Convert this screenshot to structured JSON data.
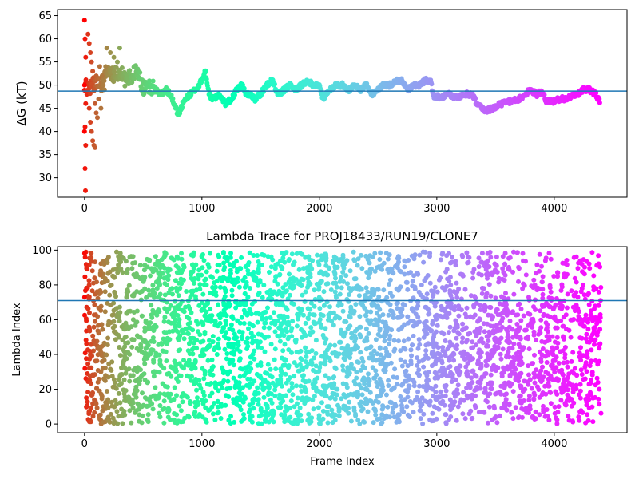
{
  "chart_data": [
    {
      "type": "scatter",
      "ylabel": "ΔG (kT)",
      "xlim": [
        -230,
        4620
      ],
      "ylim": [
        25.8,
        66.3
      ],
      "xticks": [
        0,
        1000,
        2000,
        3000,
        4000
      ],
      "yticks": [
        30,
        35,
        40,
        45,
        50,
        55,
        60,
        65
      ],
      "hline": 48.7,
      "hline_color": "#1f77b4",
      "colormap": "rainbow",
      "n_frames": 4400,
      "marker_size": 3,
      "trace_points": [
        [
          0,
          50
        ],
        [
          40,
          49
        ],
        [
          100,
          51
        ],
        [
          150,
          50
        ],
        [
          200,
          53
        ],
        [
          250,
          52
        ],
        [
          300,
          53
        ],
        [
          350,
          51
        ],
        [
          400,
          52
        ],
        [
          450,
          53
        ],
        [
          500,
          49
        ],
        [
          550,
          50
        ],
        [
          600,
          49
        ],
        [
          650,
          48
        ],
        [
          700,
          49
        ],
        [
          750,
          47
        ],
        [
          800,
          43.5
        ],
        [
          850,
          47
        ],
        [
          900,
          48
        ],
        [
          950,
          49
        ],
        [
          1000,
          51
        ],
        [
          1030,
          53
        ],
        [
          1060,
          48
        ],
        [
          1100,
          47
        ],
        [
          1150,
          48
        ],
        [
          1200,
          46
        ],
        [
          1250,
          47
        ],
        [
          1300,
          49
        ],
        [
          1340,
          50
        ],
        [
          1380,
          48
        ],
        [
          1420,
          48
        ],
        [
          1450,
          47
        ],
        [
          1500,
          48
        ],
        [
          1550,
          50
        ],
        [
          1600,
          51
        ],
        [
          1650,
          48
        ],
        [
          1700,
          49
        ],
        [
          1750,
          50
        ],
        [
          1800,
          49
        ],
        [
          1850,
          50
        ],
        [
          1900,
          51
        ],
        [
          1950,
          50
        ],
        [
          2000,
          50
        ],
        [
          2030,
          47
        ],
        [
          2080,
          49
        ],
        [
          2150,
          50
        ],
        [
          2200,
          50
        ],
        [
          2250,
          49
        ],
        [
          2300,
          50
        ],
        [
          2350,
          49
        ],
        [
          2400,
          50
        ],
        [
          2450,
          48
        ],
        [
          2500,
          49
        ],
        [
          2550,
          50
        ],
        [
          2600,
          50
        ],
        [
          2650,
          51
        ],
        [
          2700,
          51
        ],
        [
          2750,
          49
        ],
        [
          2800,
          50
        ],
        [
          2850,
          50
        ],
        [
          2900,
          51
        ],
        [
          2950,
          51
        ],
        [
          2970,
          47.5
        ],
        [
          3050,
          47.5
        ],
        [
          3100,
          48
        ],
        [
          3150,
          47.5
        ],
        [
          3200,
          47.5
        ],
        [
          3250,
          48
        ],
        [
          3300,
          48
        ],
        [
          3340,
          46
        ],
        [
          3380,
          45
        ],
        [
          3420,
          44.5
        ],
        [
          3480,
          45
        ],
        [
          3550,
          46
        ],
        [
          3600,
          46.5
        ],
        [
          3650,
          46.5
        ],
        [
          3700,
          47
        ],
        [
          3750,
          48
        ],
        [
          3800,
          49
        ],
        [
          3850,
          48
        ],
        [
          3900,
          48.5
        ],
        [
          3930,
          46.5
        ],
        [
          3980,
          46.5
        ],
        [
          4050,
          47
        ],
        [
          4100,
          47
        ],
        [
          4150,
          47.5
        ],
        [
          4200,
          48
        ],
        [
          4250,
          49
        ],
        [
          4300,
          49
        ],
        [
          4350,
          48
        ],
        [
          4390,
          46.5
        ]
      ],
      "early_scatter": [
        [
          0,
          64
        ],
        [
          5,
          60
        ],
        [
          10,
          56
        ],
        [
          0,
          50
        ],
        [
          10,
          46
        ],
        [
          5,
          41
        ],
        [
          0,
          40
        ],
        [
          10,
          37
        ],
        [
          5,
          32
        ],
        [
          8,
          27.2
        ],
        [
          30,
          61
        ],
        [
          40,
          59
        ],
        [
          50,
          57
        ],
        [
          60,
          55
        ],
        [
          70,
          53
        ],
        [
          80,
          49
        ],
        [
          90,
          46
        ],
        [
          100,
          44
        ],
        [
          40,
          45
        ],
        [
          50,
          42
        ],
        [
          60,
          40
        ],
        [
          70,
          38
        ],
        [
          80,
          37
        ],
        [
          90,
          36.5
        ],
        [
          110,
          43
        ],
        [
          130,
          54
        ],
        [
          150,
          52
        ],
        [
          170,
          49
        ],
        [
          190,
          58
        ],
        [
          220,
          57
        ],
        [
          250,
          56
        ],
        [
          280,
          55
        ],
        [
          300,
          58
        ],
        [
          120,
          47
        ],
        [
          140,
          45
        ],
        [
          160,
          50
        ],
        [
          180,
          54
        ]
      ]
    },
    {
      "type": "scatter",
      "title": "Lambda Trace for PROJ18433/RUN19/CLONE7",
      "xlabel": "Frame Index",
      "ylabel": "Lambda Index",
      "xlim": [
        -230,
        4620
      ],
      "ylim": [
        -5,
        102
      ],
      "xticks": [
        0,
        1000,
        2000,
        3000,
        4000
      ],
      "yticks": [
        0,
        20,
        40,
        60,
        80,
        100
      ],
      "hline": 71,
      "hline_color": "#1f77b4",
      "colormap": "rainbow",
      "n_frames": 4400,
      "lambda_min": 0,
      "lambda_max": 99,
      "n_points": 3600,
      "marker_size": 3
    }
  ]
}
